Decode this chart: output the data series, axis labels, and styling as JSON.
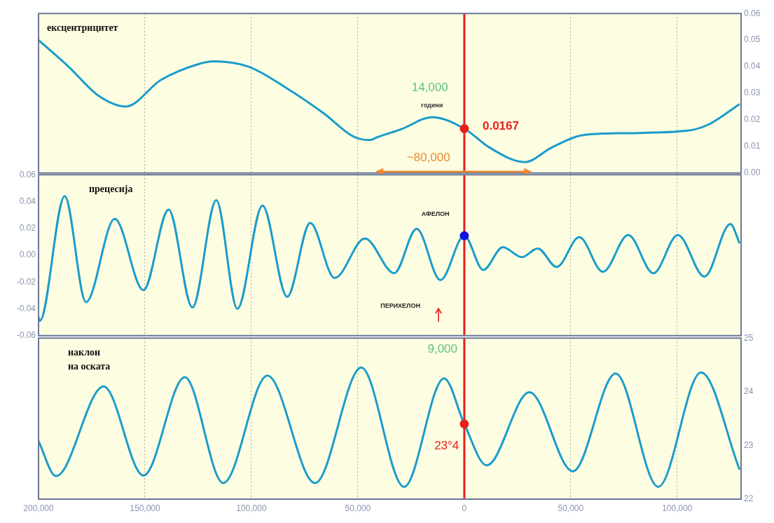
{
  "chart_data": [
    {
      "type": "line",
      "title": "ексцентрицитет",
      "xlim": [
        -200000,
        130000
      ],
      "xticks": [
        -200000,
        -150000,
        -100000,
        -50000,
        0,
        50000,
        100000
      ],
      "ylim": [
        0,
        0.06
      ],
      "yticks": [
        {
          "value": 0,
          "label": "0.00"
        },
        0.01,
        0.02,
        0.03,
        0.04,
        0.05,
        0.06
      ],
      "grid": "x",
      "tick_labels": "y",
      "series": [
        {
          "color": "#1a9ccc",
          "x": [
            -200000,
            -185900,
            -171700,
            -159000,
            -142500,
            -124700,
            -117800,
            -101300,
            -83600,
            -66100,
            -52000,
            -44400,
            -41100,
            -29300,
            -15100,
            0,
            11800,
            28300,
            41100,
            55300,
            76300,
            105600,
            115100,
            129300
          ],
          "values": [
            0.05,
            0.04,
            0.029,
            0.025,
            0.035,
            0.041,
            0.042,
            0.04,
            0.032,
            0.0225,
            0.0137,
            0.0124,
            0.0134,
            0.0166,
            0.021,
            0.0167,
            0.0096,
            0.0041,
            0.0096,
            0.0142,
            0.015,
            0.016,
            0.0184,
            0.0259
          ]
        },
        {
          "type": "scatter",
          "marker": "circle",
          "color": "#e8201a",
          "x": [
            0
          ],
          "values": [
            0.0167
          ]
        }
      ],
      "ref_lines": [
        {
          "axis": "x",
          "value": 0,
          "color": "#e8201a"
        }
      ],
      "annotations": [
        "14,000",
        "години",
        "0.0167",
        "~80,000"
      ]
    },
    {
      "type": "line",
      "title": "прецесија",
      "xlim": [
        -200000,
        130000
      ],
      "xticks": [
        -200000,
        -150000,
        -100000,
        -50000,
        0,
        50000,
        100000
      ],
      "ylim": [
        -0.06,
        0.06
      ],
      "yticks": [
        -0.06,
        -0.04,
        -0.02,
        {
          "value": 0,
          "label": "0.00"
        },
        0.02,
        0.04,
        0.06
      ],
      "grid": "x",
      "tick_labels": "y",
      "series": [
        {
          "color": "#1a9ccc",
          "x": [
            -200000,
            -199400,
            -187700,
            -177700,
            -164200,
            -150700,
            -138900,
            -127700,
            -116500,
            -106600,
            -94800,
            -83200,
            -72400,
            -60900,
            -46700,
            -32900,
            -22400,
            -11200,
            0,
            8900,
            18100,
            27000,
            34500,
            43400,
            54000,
            65100,
            77000,
            88800,
            100300,
            112800,
            125000,
            129300
          ],
          "values": [
            -0.046,
            -0.049,
            0.044,
            -0.035,
            0.027,
            -0.026,
            0.034,
            -0.039,
            0.041,
            -0.04,
            0.037,
            -0.031,
            0.024,
            -0.017,
            0.0124,
            -0.0134,
            0.0197,
            -0.0186,
            0.0145,
            -0.011,
            0.006,
            -0.0015,
            0.005,
            -0.0088,
            0.0134,
            -0.0124,
            0.015,
            -0.0134,
            0.015,
            -0.016,
            0.0233,
            0.0088
          ]
        },
        {
          "type": "scatter",
          "marker": "circle",
          "color": "#1010e0",
          "x": [
            0
          ],
          "values": [
            0.0145
          ]
        }
      ],
      "ref_lines": [
        {
          "axis": "x",
          "value": 0,
          "color": "#e8201a"
        }
      ],
      "annotations": [
        "АФЕЛОН",
        "ПЕРИХЕЛОН"
      ]
    },
    {
      "type": "line",
      "title": "наклон\nна оската",
      "xlim": [
        -200000,
        130000
      ],
      "xticks": [
        {
          "value": -200000,
          "label": "200,000"
        },
        {
          "value": -150000,
          "label": "150,000"
        },
        {
          "value": -100000,
          "label": "100,000"
        },
        {
          "value": -50000,
          "label": "50,000"
        },
        {
          "value": 0,
          "label": "0"
        },
        {
          "value": 50000,
          "label": "50,000"
        },
        {
          "value": 100000,
          "label": "100,000"
        }
      ],
      "ylim": [
        22,
        25
      ],
      "yticks": [
        22,
        23,
        24,
        25
      ],
      "grid": "x",
      "series": [
        {
          "color": "#1a9ccc",
          "x": [
            -200000,
            -191800,
            -169400,
            -150700,
            -131300,
            -113200,
            -92500,
            -70100,
            -48400,
            -28300,
            -9500,
            0,
            10500,
            30600,
            51000,
            71100,
            91100,
            111200,
            129300
          ],
          "values": [
            23.08,
            22.43,
            24.1,
            22.44,
            24.27,
            22.3,
            24.3,
            22.3,
            24.45,
            22.23,
            24.25,
            23.4,
            22.63,
            23.99,
            22.52,
            24.34,
            22.23,
            24.36,
            22.55
          ]
        },
        {
          "type": "scatter",
          "marker": "circle",
          "color": "#e8201a",
          "x": [
            0
          ],
          "values": [
            23.4
          ]
        }
      ],
      "ref_lines": [
        {
          "axis": "x",
          "value": 0,
          "color": "#e8201a"
        }
      ],
      "annotations": [
        "9,000",
        "23°4"
      ]
    }
  ]
}
